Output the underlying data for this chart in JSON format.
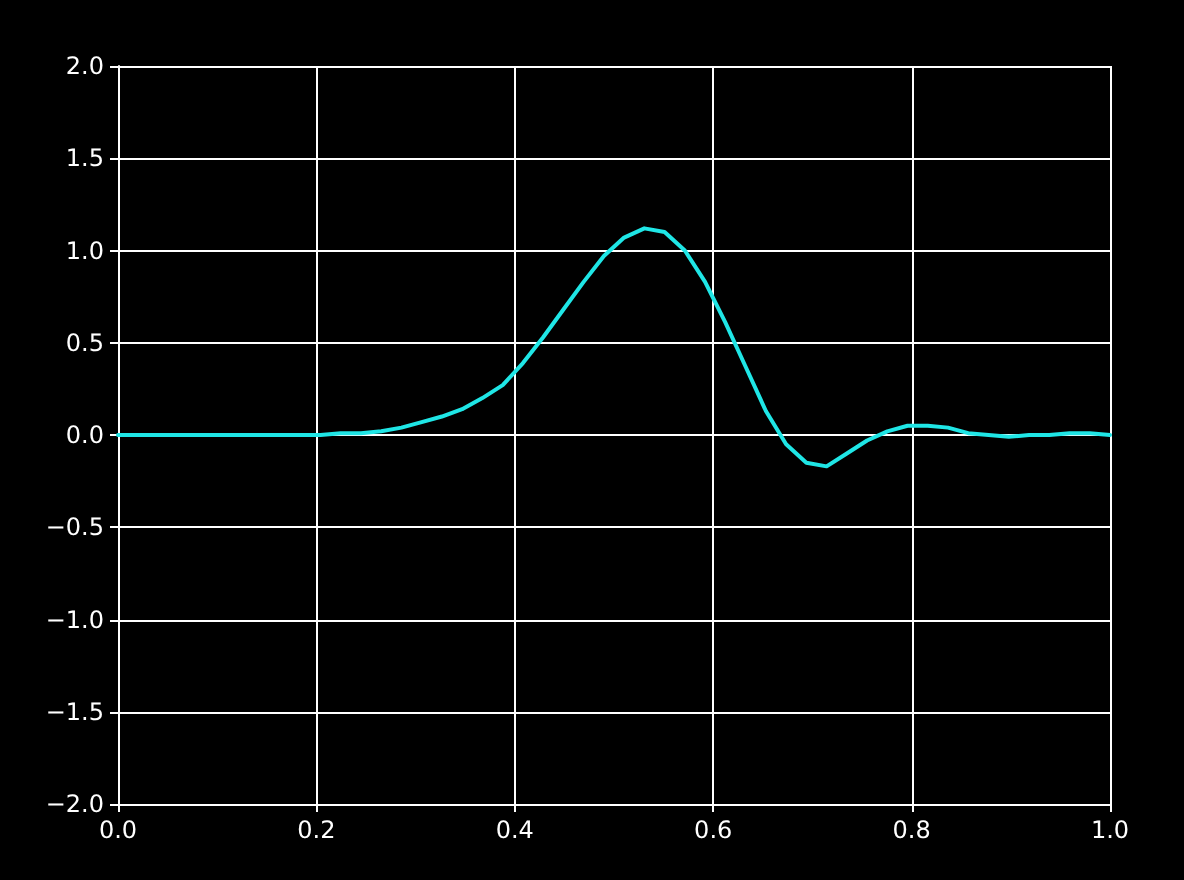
{
  "chart_data": {
    "type": "line",
    "x": [
      0,
      0.0204,
      0.0408,
      0.0612,
      0.0816,
      0.102,
      0.1224,
      0.1429,
      0.1633,
      0.1837,
      0.2041,
      0.2245,
      0.2449,
      0.2653,
      0.2857,
      0.3061,
      0.3265,
      0.3469,
      0.3673,
      0.3878,
      0.4082,
      0.4286,
      0.449,
      0.4694,
      0.4898,
      0.5102,
      0.5306,
      0.551,
      0.5714,
      0.5918,
      0.6122,
      0.6327,
      0.6531,
      0.6735,
      0.6939,
      0.7143,
      0.7347,
      0.7551,
      0.7755,
      0.7959,
      0.8163,
      0.8367,
      0.8571,
      0.8776,
      0.898,
      0.9184,
      0.9388,
      0.9592,
      0.9796,
      1
    ],
    "series": [
      {
        "color": "#1fe6e6",
        "values": [
          0,
          0,
          0,
          0,
          0,
          0,
          0,
          0,
          0,
          0,
          0,
          0.01,
          0.01,
          0.02,
          0.04,
          0.07,
          0.1,
          0.14,
          0.2,
          0.27,
          0.39,
          0.53,
          0.68,
          0.83,
          0.97,
          1.07,
          1.12,
          1.1,
          1.0,
          0.83,
          0.61,
          0.37,
          0.13,
          -0.05,
          -0.15,
          -0.17,
          -0.1,
          -0.03,
          0.02,
          0.05,
          0.05,
          0.04,
          0.01,
          0,
          -0.01,
          0,
          0,
          0.01,
          0.01,
          0
        ]
      }
    ],
    "xlim": [
      0,
      1
    ],
    "ylim": [
      -2,
      2
    ],
    "xticks": [
      {
        "value": 0,
        "label": "0.0"
      },
      0.2,
      0.4,
      0.6,
      0.8,
      {
        "value": 1,
        "label": "1.0"
      }
    ],
    "yticks": [
      {
        "value": -2,
        "label": "−2.0"
      },
      {
        "value": -1.5,
        "label": "−1.5"
      },
      {
        "value": -1,
        "label": "−1.0"
      },
      {
        "value": -0.5,
        "label": "−0.5"
      },
      {
        "value": 0,
        "label": "0.0"
      },
      0.5,
      {
        "value": 1,
        "label": "1.0"
      },
      1.5,
      {
        "value": 2,
        "label": "2.0"
      }
    ],
    "grid": true,
    "marker": "none",
    "line_style": "solid"
  }
}
